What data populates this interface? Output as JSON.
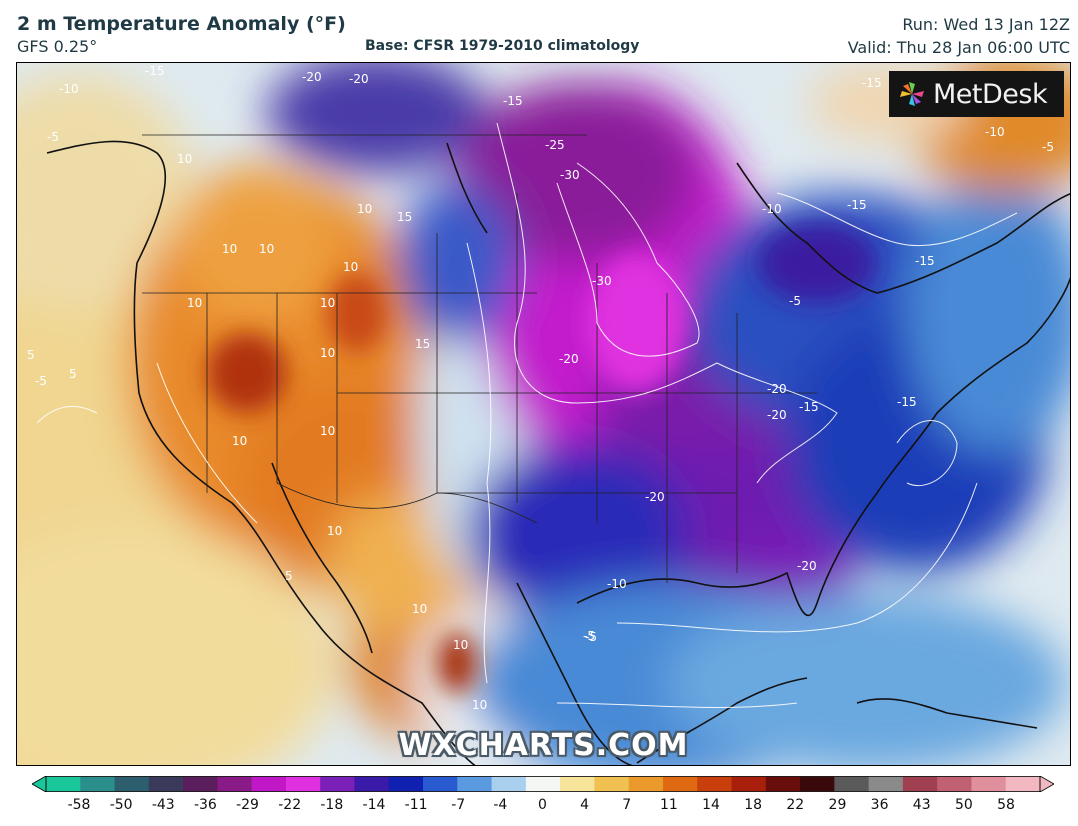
{
  "header": {
    "title": "2 m Temperature Anomaly (°F)",
    "model": "GFS 0.25°",
    "base": "Base: CFSR 1979-2010 climatology",
    "run": "Run: Wed 13 Jan 12Z",
    "valid": "Valid: Thu 28 Jan 06:00 UTC"
  },
  "logo": {
    "text": "MetDesk",
    "icon": "metdesk-pinwheel-icon"
  },
  "watermark": "WXCHARTS.COM",
  "colorbar": {
    "ticks": [
      "-58",
      "-50",
      "-43",
      "-36",
      "-29",
      "-22",
      "-18",
      "-14",
      "-11",
      "-7",
      "-4",
      "0",
      "4",
      "7",
      "11",
      "14",
      "18",
      "22",
      "29",
      "36",
      "43",
      "50",
      "58"
    ],
    "colors": [
      "#19c79a",
      "#2a8f8a",
      "#2d5e6e",
      "#3a3a5a",
      "#5a1e5c",
      "#8a1a86",
      "#c018c6",
      "#e030e0",
      "#7a20b8",
      "#3a1aa8",
      "#1020b0",
      "#2a5ad0",
      "#5a9ae0",
      "#a8d0ee",
      "#f4f6f4",
      "#f6e49a",
      "#f0c050",
      "#ea9a2a",
      "#e06a14",
      "#c83e0c",
      "#a8200c",
      "#6a0e0c",
      "#3a0a0a",
      "#5a5a5a",
      "#8a8a8a",
      "#a04050",
      "#c06070",
      "#e0909c",
      "#f2b8c2"
    ]
  },
  "map_labels": [
    "-10",
    "-15",
    "-20",
    "-20",
    "-15",
    "-25",
    "-30",
    "-30",
    "-20",
    "-20",
    "-20",
    "-15",
    "-15",
    "-15",
    "-10",
    "-15",
    "-15",
    "-10",
    "-5",
    "-20",
    "-20",
    "-10",
    "-5",
    "-5",
    "-5",
    "-5",
    "5",
    "5",
    "10",
    "10",
    "10",
    "10",
    "10",
    "10",
    "10",
    "10",
    "10",
    "10",
    "10",
    "10",
    "10",
    "15",
    "15",
    "10",
    "-5",
    "5"
  ]
}
